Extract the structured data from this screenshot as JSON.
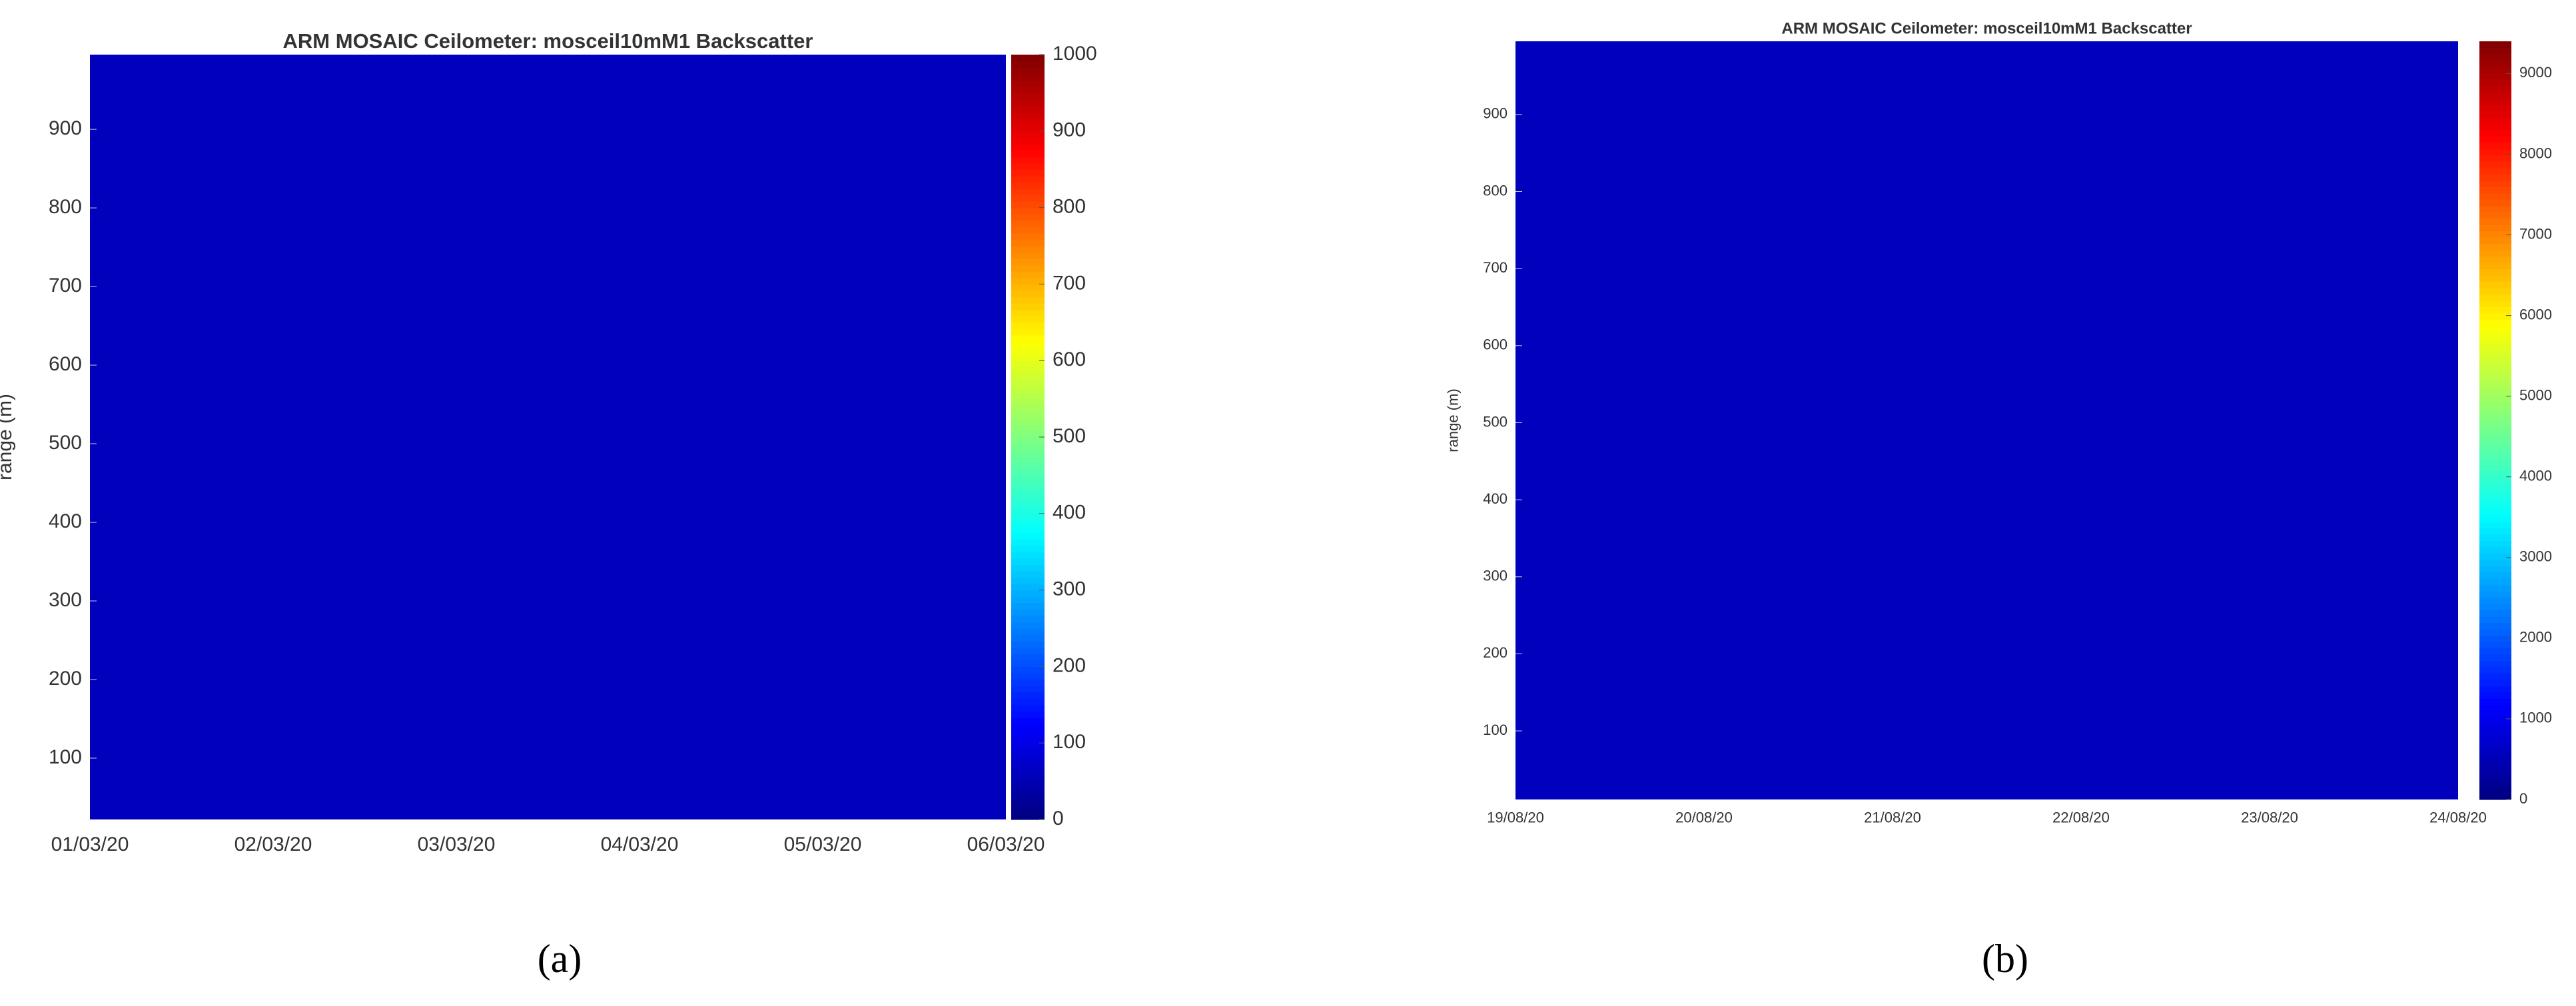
{
  "chart_data": [
    {
      "type": "heatmap",
      "title": "ARM MOSAIC Ceilometer: mosceil10mM1 Backscatter",
      "ylabel": "range (m)",
      "xticks": [
        "01/03/20",
        "02/03/20",
        "03/03/20",
        "04/03/20",
        "05/03/20",
        "06/03/20"
      ],
      "ylim": [
        22,
        995
      ],
      "yticks": [
        100,
        200,
        300,
        400,
        500,
        600,
        700,
        800,
        900
      ],
      "colormap": "jet",
      "clim": [
        0,
        1000
      ],
      "cticks": [
        0,
        100,
        200,
        300,
        400,
        500,
        600,
        700,
        800,
        900,
        1000
      ],
      "caption": "(a)"
    },
    {
      "type": "heatmap",
      "title": "ARM MOSAIC Ceilometer: mosceil10mM1 Backscatter",
      "ylabel": "range (m)",
      "xticks": [
        "19/08/20",
        "20/08/20",
        "21/08/20",
        "22/08/20",
        "23/08/20",
        "24/08/20"
      ],
      "ylim": [
        11,
        995
      ],
      "yticks": [
        100,
        200,
        300,
        400,
        500,
        600,
        700,
        800,
        900
      ],
      "colormap": "jet",
      "clim": [
        0,
        9400
      ],
      "cticks": [
        0,
        1000,
        2000,
        3000,
        4000,
        5000,
        6000,
        7000,
        8000,
        9000
      ],
      "caption": "(b)"
    }
  ]
}
